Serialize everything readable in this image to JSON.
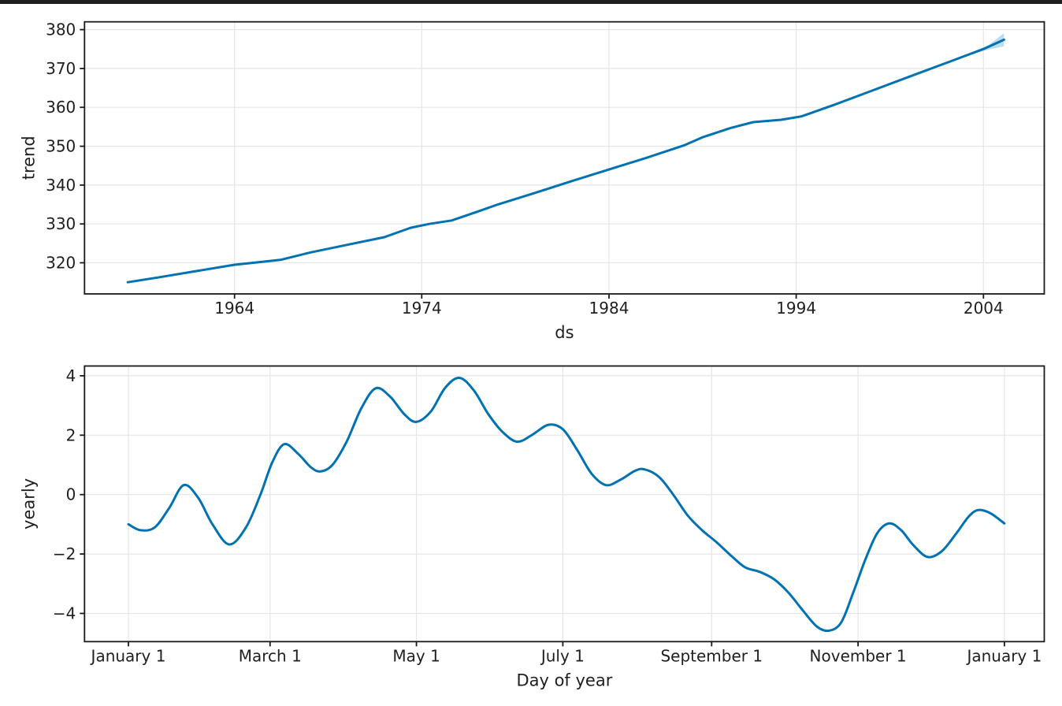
{
  "window": {
    "top_edge_color": "#1f1f1f"
  },
  "figure": {
    "background": "#ffffff",
    "line_color": "#0072B2",
    "band_color": "#0072B2",
    "band_opacity": 0.25,
    "grid_color": "#e6e6e6",
    "spine_color": "#1a1a1a",
    "text_color": "#1f1f1f"
  },
  "chart_data": [
    {
      "type": "line",
      "name": "trend-component",
      "xlabel": "ds",
      "ylabel": "trend",
      "grid": true,
      "legend": "none",
      "smooth": false,
      "xlim": [
        1955.99,
        2007.25
      ],
      "ylim": [
        312.0,
        382.0
      ],
      "xticks": {
        "values": [
          1964,
          1974,
          1984,
          1994,
          2004
        ],
        "labels": [
          "1964",
          "1974",
          "1984",
          "1994",
          "2004"
        ]
      },
      "yticks": {
        "values": [
          320,
          330,
          340,
          350,
          360,
          370,
          380
        ],
        "labels": [
          "320",
          "330",
          "340",
          "350",
          "360",
          "370",
          "380"
        ]
      },
      "series": [
        {
          "name": "trend",
          "x": [
            1958.3,
            1960,
            1962,
            1964,
            1965.2,
            1966.5,
            1968,
            1970,
            1972,
            1973.4,
            1974.4,
            1975.6,
            1977,
            1978,
            1980,
            1982,
            1984,
            1986,
            1988,
            1989,
            1990.5,
            1991.7,
            1993.2,
            1994.3,
            1996,
            1998,
            2000,
            2002,
            2004,
            2005.1
          ],
          "y": [
            315.0,
            316.3,
            317.9,
            319.5,
            320.1,
            320.8,
            322.6,
            324.6,
            326.6,
            329.0,
            330.0,
            330.9,
            333.2,
            334.9,
            337.9,
            341.0,
            344.0,
            347.0,
            350.2,
            352.3,
            354.7,
            356.2,
            356.8,
            357.7,
            360.6,
            364.2,
            367.8,
            371.4,
            375.0,
            377.4
          ]
        }
      ],
      "uncertainty_band": {
        "x": [
          2002.9,
          2003.6,
          2004.3,
          2005.1
        ],
        "upper": [
          373.2,
          374.6,
          376.1,
          379.1
        ],
        "lower": [
          372.8,
          374.0,
          374.9,
          375.7
        ]
      }
    },
    {
      "type": "line",
      "name": "yearly-seasonality-component",
      "xlabel": "Day of year",
      "ylabel": "yearly",
      "grid": true,
      "legend": "none",
      "smooth": true,
      "xlim": [
        -17.3,
        382.6
      ],
      "ylim": [
        -4.95,
        4.33
      ],
      "xticks": {
        "values": [
          1,
          60,
          121,
          182,
          244,
          305,
          366
        ],
        "labels": [
          "January 1",
          "March 1",
          "May 1",
          "July 1",
          "September 1",
          "November 1",
          "January 1"
        ]
      },
      "yticks": {
        "values": [
          -4,
          -2,
          0,
          2,
          4
        ],
        "labels": [
          "−4",
          "−2",
          "0",
          "2",
          "4"
        ]
      },
      "series": [
        {
          "name": "yearly",
          "x": [
            1,
            6,
            12,
            18,
            24,
            30,
            36,
            43,
            50,
            56,
            61,
            66,
            72,
            77,
            81,
            86,
            92,
            98,
            104,
            110,
            116,
            121,
            127,
            133,
            139,
            145,
            151,
            157,
            163,
            169,
            176,
            182,
            188,
            194,
            200,
            206,
            212,
            216,
            222,
            228,
            234,
            240,
            246,
            252,
            258,
            264,
            270,
            276,
            282,
            288,
            293,
            298,
            303,
            308,
            313,
            318,
            323,
            328,
            334,
            340,
            346,
            351,
            355,
            360,
            366
          ],
          "y": [
            -1.0,
            -1.2,
            -1.1,
            -0.45,
            0.32,
            -0.1,
            -1.0,
            -1.68,
            -1.1,
            0.0,
            1.1,
            1.7,
            1.35,
            0.92,
            0.78,
            1.0,
            1.8,
            2.9,
            3.58,
            3.3,
            2.7,
            2.45,
            2.8,
            3.6,
            3.93,
            3.5,
            2.7,
            2.1,
            1.78,
            2.0,
            2.35,
            2.2,
            1.5,
            0.7,
            0.32,
            0.5,
            0.8,
            0.85,
            0.6,
            0.0,
            -0.7,
            -1.2,
            -1.6,
            -2.05,
            -2.45,
            -2.6,
            -2.85,
            -3.3,
            -3.9,
            -4.45,
            -4.58,
            -4.3,
            -3.3,
            -2.2,
            -1.3,
            -0.97,
            -1.2,
            -1.7,
            -2.1,
            -1.9,
            -1.3,
            -0.75,
            -0.52,
            -0.62,
            -0.97
          ]
        }
      ]
    }
  ]
}
